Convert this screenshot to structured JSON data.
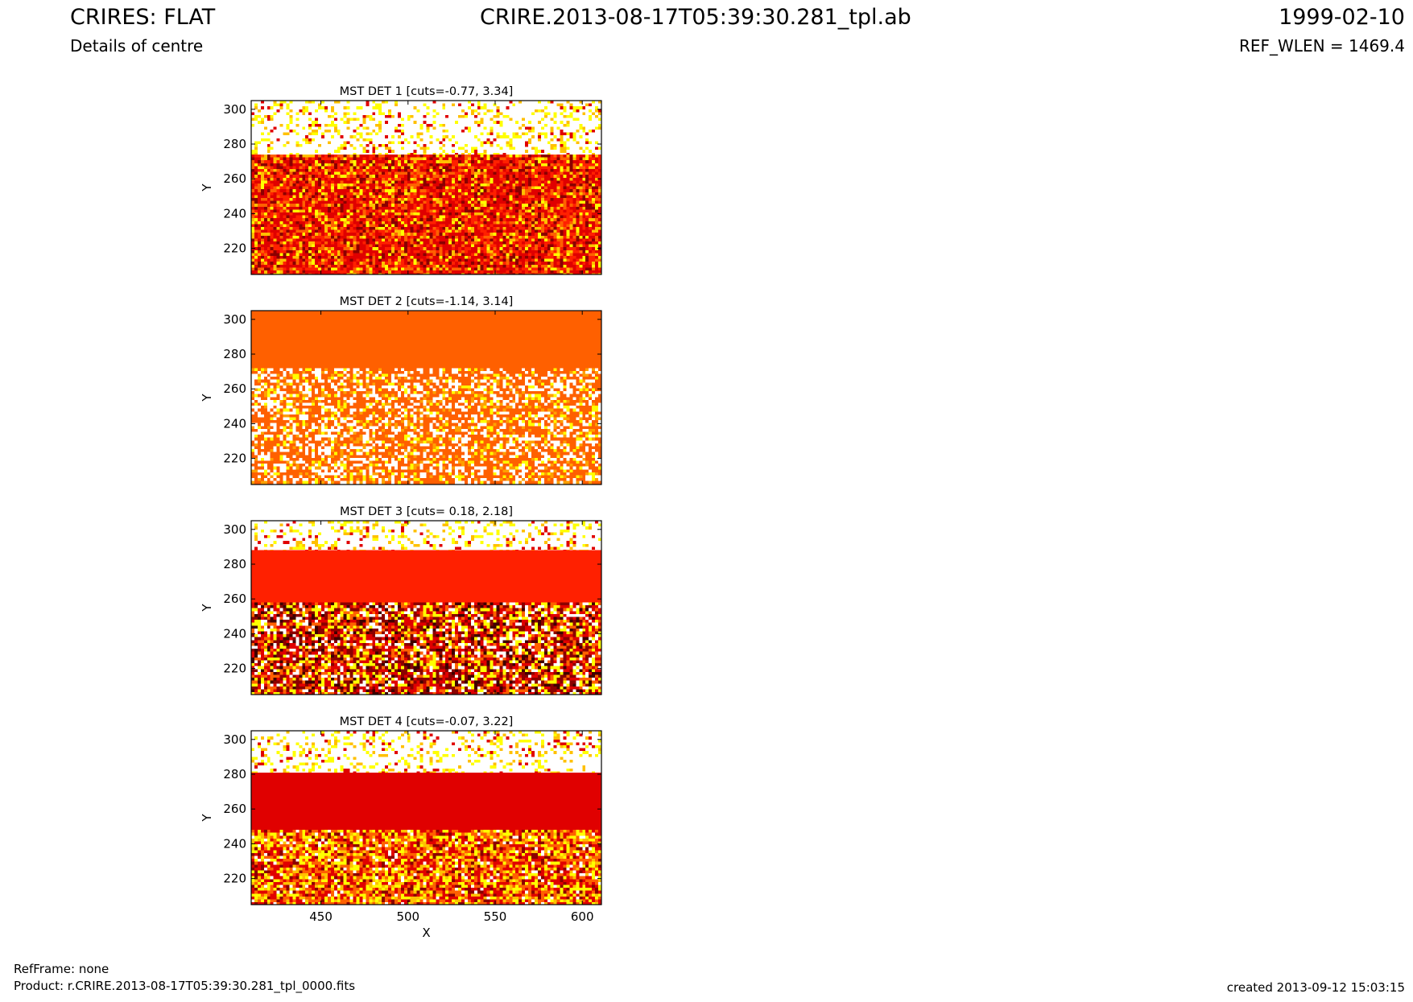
{
  "header": {
    "left_title": "CRIRES: FLAT",
    "left_subtitle": "Details of centre",
    "center_title": "CRIRE.2013-08-17T05:39:30.281_tpl.ab",
    "right_title": "1999-02-10",
    "right_subtitle": "REF_WLEN = 1469.4"
  },
  "footer": {
    "refframe": "RefFrame: none",
    "product": "Product: r.CRIRE.2013-08-17T05:39:30.281_tpl_0000.fits",
    "created": "created 2013-09-12 15:03:15"
  },
  "colors": {
    "deep_red": "#8b0000",
    "red": "#e00000",
    "orange_red": "#ff2000",
    "orange": "#ff6000",
    "yellow": "#ffff00",
    "white": "#ffffff"
  },
  "chart_data": [
    {
      "type": "heatmap",
      "title": "MST DET 1 [cuts=-0.77, 3.34]",
      "xlabel": "",
      "ylabel": "Y",
      "xlim": [
        410,
        611
      ],
      "ylim": [
        205,
        305
      ],
      "yticks": [
        220,
        240,
        260,
        280,
        300
      ],
      "bands": [
        {
          "y": [
            274,
            305
          ],
          "fill": "noisy-white"
        },
        {
          "y": [
            205,
            274
          ],
          "fill": "noisy-red"
        }
      ]
    },
    {
      "type": "heatmap",
      "title": "MST DET 2 [cuts=-1.14, 3.14]",
      "xlabel": "",
      "ylabel": "Y",
      "xlim": [
        410,
        611
      ],
      "ylim": [
        205,
        305
      ],
      "yticks": [
        220,
        240,
        260,
        280,
        300
      ],
      "bands": [
        {
          "y": [
            272,
            305
          ],
          "fill": "solid-orange"
        },
        {
          "y": [
            205,
            272
          ],
          "fill": "noisy-orange-white"
        }
      ]
    },
    {
      "type": "heatmap",
      "title": "MST DET 3 [cuts= 0.18, 2.18]",
      "xlabel": "",
      "ylabel": "Y",
      "xlim": [
        410,
        611
      ],
      "ylim": [
        205,
        305
      ],
      "yticks": [
        220,
        240,
        260,
        280,
        300
      ],
      "bands": [
        {
          "y": [
            288,
            305
          ],
          "fill": "noisy-white"
        },
        {
          "y": [
            258,
            288
          ],
          "fill": "solid-orange-red"
        },
        {
          "y": [
            205,
            258
          ],
          "fill": "noisy-dark"
        }
      ]
    },
    {
      "type": "heatmap",
      "title": "MST DET 4 [cuts=-0.07, 3.22]",
      "xlabel": "X",
      "ylabel": "Y",
      "xlim": [
        410,
        611
      ],
      "ylim": [
        205,
        305
      ],
      "xticks": [
        450,
        500,
        550,
        600
      ],
      "yticks": [
        220,
        240,
        260,
        280,
        300
      ],
      "bands": [
        {
          "y": [
            281,
            305
          ],
          "fill": "noisy-white"
        },
        {
          "y": [
            248,
            281
          ],
          "fill": "solid-red"
        },
        {
          "y": [
            205,
            248
          ],
          "fill": "noisy-red-yellow"
        }
      ]
    }
  ]
}
